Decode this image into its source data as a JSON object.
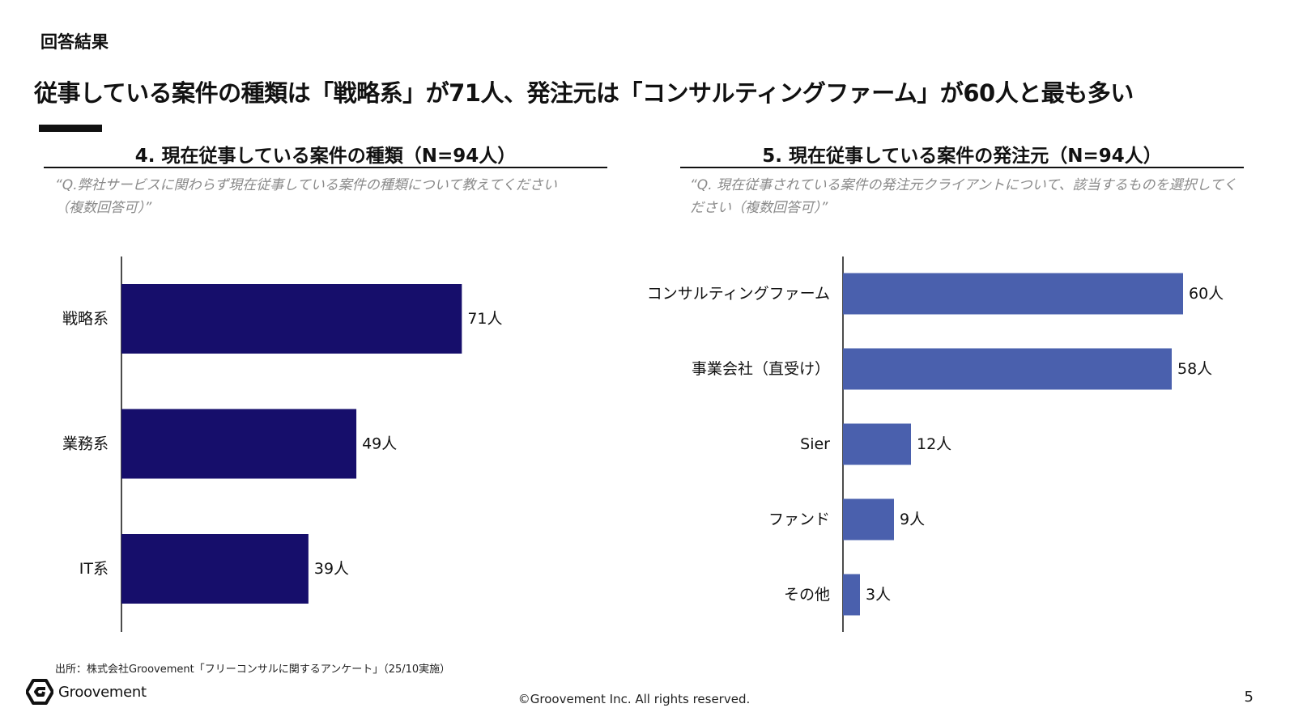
{
  "header": {
    "section_label": "回答結果",
    "headline": "従事している案件の種類は「戦略系」が71人、発注元は「コンサルティングファーム」が60人と最も多い"
  },
  "chart_data": [
    {
      "type": "bar",
      "orientation": "horizontal",
      "title": "4. 現在従事している案件の種類（N=94人）",
      "question": "“Q.弊社サービスに関わらず現在従事している案件の種類について教えてください（複数回答可）”",
      "categories": [
        "戦略系",
        "業務系",
        "IT系"
      ],
      "values": [
        71,
        49,
        39
      ],
      "value_labels": [
        "71人",
        "49人",
        "39人"
      ],
      "color": "#160e6b",
      "xlim": [
        0,
        100
      ]
    },
    {
      "type": "bar",
      "orientation": "horizontal",
      "title": "5. 現在従事している案件の発注元（N=94人）",
      "question": "“Q. 現在従事されている案件の発注元クライアントについて、該当するものを選択してください（複数回答可）”",
      "categories": [
        "コンサルティングファーム",
        "事業会社（直受け）",
        "Sier",
        "ファンド",
        "その他"
      ],
      "values": [
        60,
        58,
        12,
        9,
        3
      ],
      "value_labels": [
        "60人",
        "58人",
        "12人",
        "9人",
        "3人"
      ],
      "color": "#4a60ad",
      "xlim": [
        0,
        100
      ]
    }
  ],
  "footer": {
    "source": "出所：株式会社Groovement「フリーコンサルに関するアンケート」（25/10実施）",
    "logo_text": "Groovement",
    "copyright": "©Groovement Inc. All rights reserved.",
    "page_number": "5"
  }
}
